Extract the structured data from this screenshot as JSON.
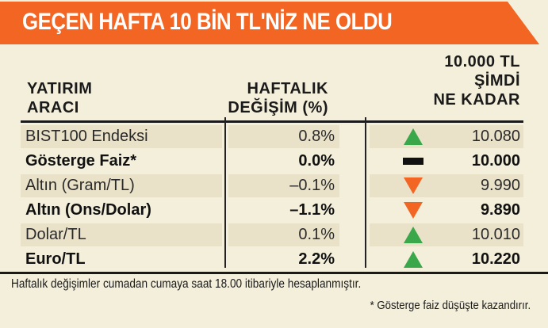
{
  "title": "GEÇEN HAFTA 10 BİN TL'NİZ NE OLDU",
  "colors": {
    "banner": "#f26522",
    "background": "#f4efdb",
    "row_shade": "#e9e2c9",
    "up": "#3aa84a",
    "down": "#f26522",
    "flat": "#111111"
  },
  "headers": {
    "instrument_line1": "YATIRIM",
    "instrument_line2": "ARACI",
    "change_line1": "HAFTALIK",
    "change_line2": "DEĞİŞİM (%)",
    "value_line1": "10.000 TL",
    "value_line2": "ŞİMDİ",
    "value_line3": "NE KADAR"
  },
  "rows": [
    {
      "name": "BIST100 Endeksi",
      "change": "0.8%",
      "trend": "up-triangle-icon",
      "value": "10.080"
    },
    {
      "name": "Gösterge Faiz*",
      "change": "0.0%",
      "trend": "flat-bar-icon",
      "value": "10.000"
    },
    {
      "name": "Altın (Gram/TL)",
      "change": "–0.1%",
      "trend": "down-triangle-icon",
      "value": "9.990"
    },
    {
      "name": "Altın (Ons/Dolar)",
      "change": "–1.1%",
      "trend": "down-triangle-icon",
      "value": "9.890"
    },
    {
      "name": "Dolar/TL",
      "change": "0.1%",
      "trend": "up-triangle-icon",
      "value": "10.010"
    },
    {
      "name": "Euro/TL",
      "change": "2.2%",
      "trend": "up-triangle-icon",
      "value": "10.220"
    }
  ],
  "footnotes": {
    "line1": "Haftalık değişimler cumadan cumaya saat 18.00 itibariyle hesaplanmıştır.",
    "line2": "* Gösterge faiz düşüşte kazandırır."
  }
}
